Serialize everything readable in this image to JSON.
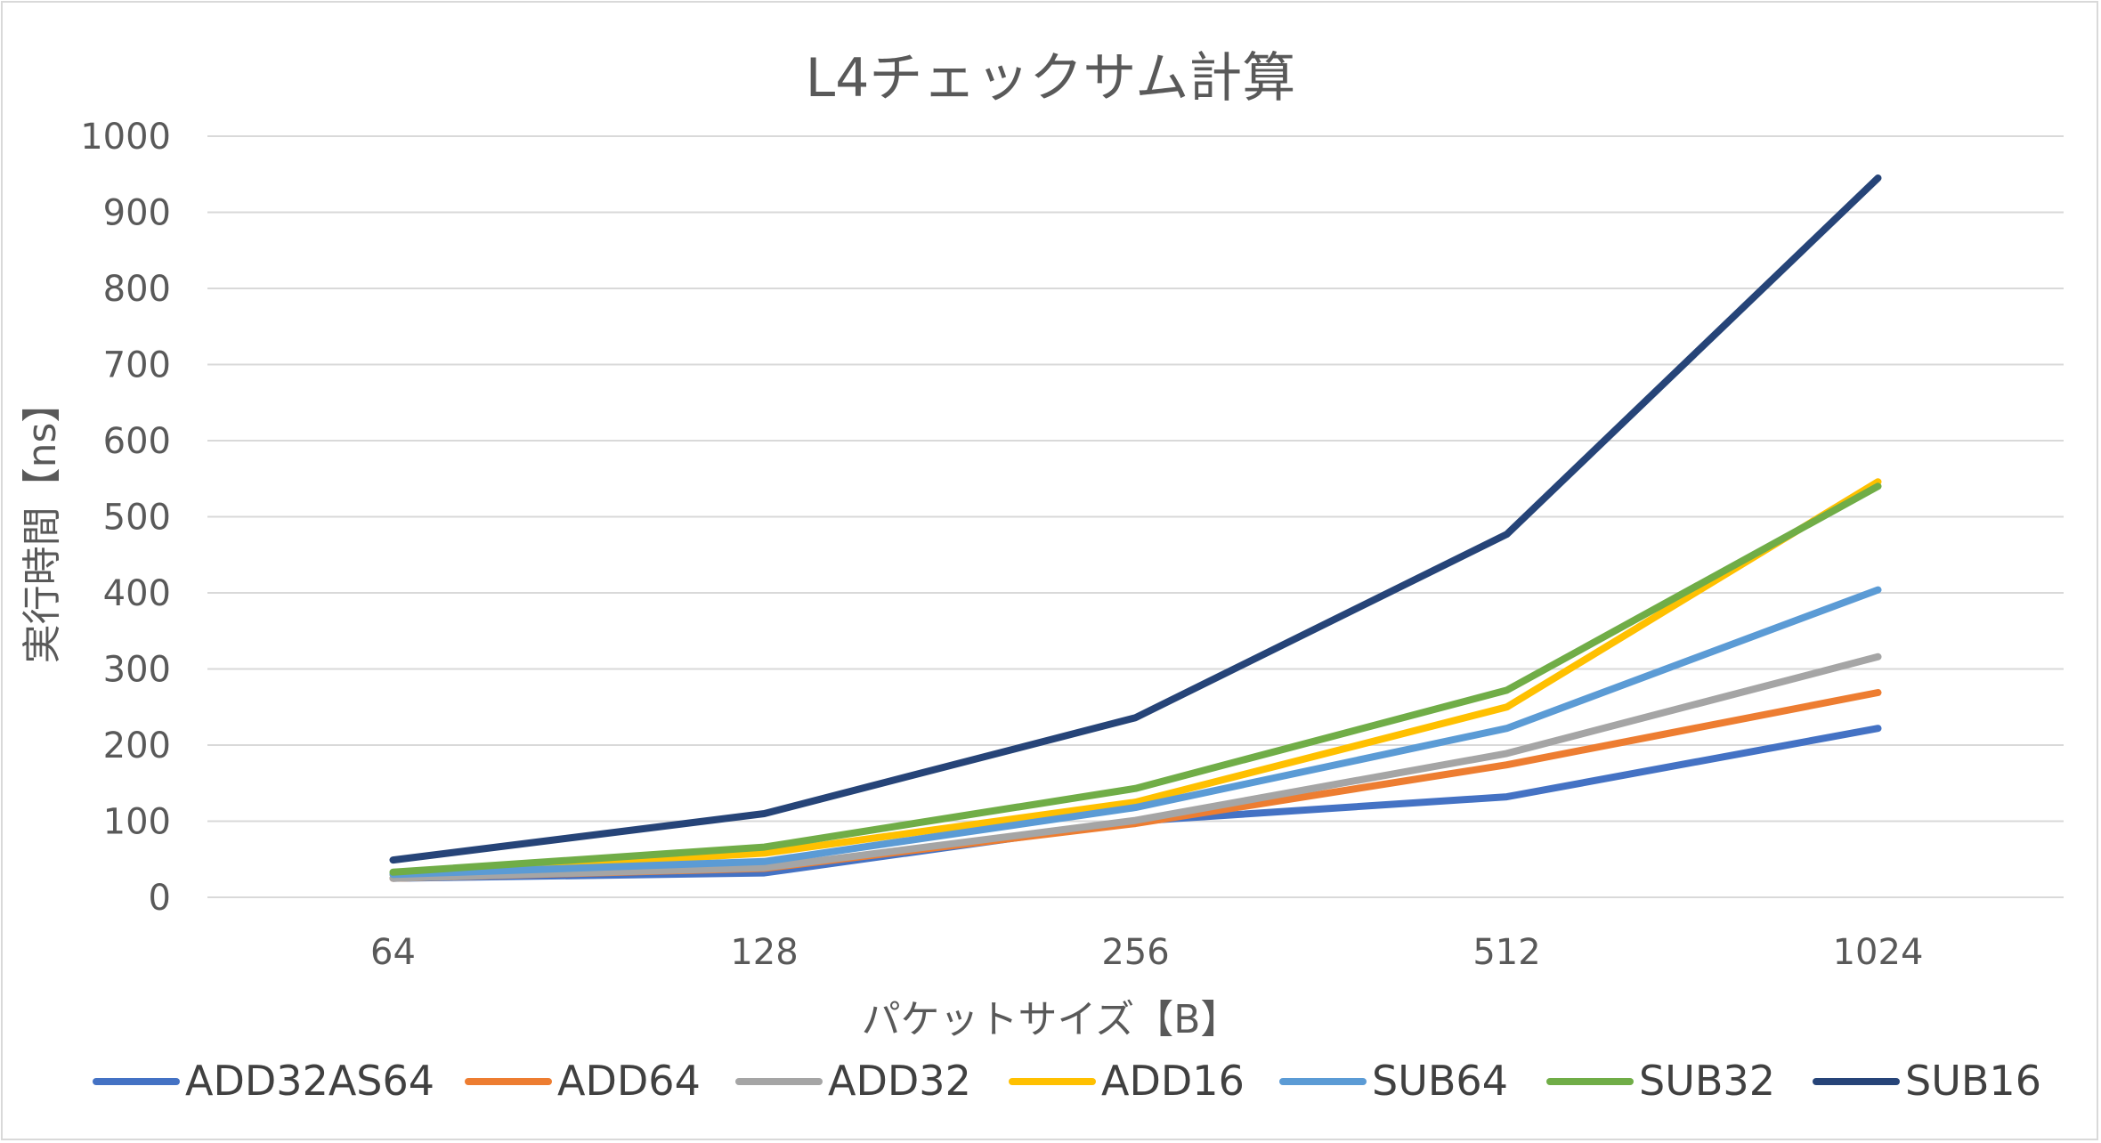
{
  "chart_data": {
    "type": "line",
    "title": "L4チェックサム計算",
    "xlabel": "パケットサイズ【B】",
    "ylabel": "実行時間【ns】",
    "categories": [
      "64",
      "128",
      "256",
      "512",
      "1024"
    ],
    "ylim": [
      0,
      1000
    ],
    "yticks": [
      0,
      100,
      200,
      300,
      400,
      500,
      600,
      700,
      800,
      900,
      1000
    ],
    "grid": true,
    "legend_position": "bottom",
    "series": [
      {
        "name": "ADD32AS64",
        "color": "#4472C4",
        "values": [
          25,
          32,
          100,
          132,
          222
        ]
      },
      {
        "name": "ADD64",
        "color": "#ED7D31",
        "values": [
          25,
          38,
          97,
          174,
          269
        ]
      },
      {
        "name": "ADD32",
        "color": "#A5A5A5",
        "values": [
          25,
          39,
          101,
          189,
          316
        ]
      },
      {
        "name": "ADD16",
        "color": "#FFC000",
        "values": [
          30,
          58,
          125,
          250,
          546
        ]
      },
      {
        "name": "SUB64",
        "color": "#5B9BD5",
        "values": [
          30,
          47,
          118,
          222,
          404
        ]
      },
      {
        "name": "SUB32",
        "color": "#70AD47",
        "values": [
          33,
          66,
          143,
          272,
          540
        ]
      },
      {
        "name": "SUB16",
        "color": "#264478",
        "values": [
          49,
          110,
          236,
          477,
          945
        ]
      }
    ]
  }
}
